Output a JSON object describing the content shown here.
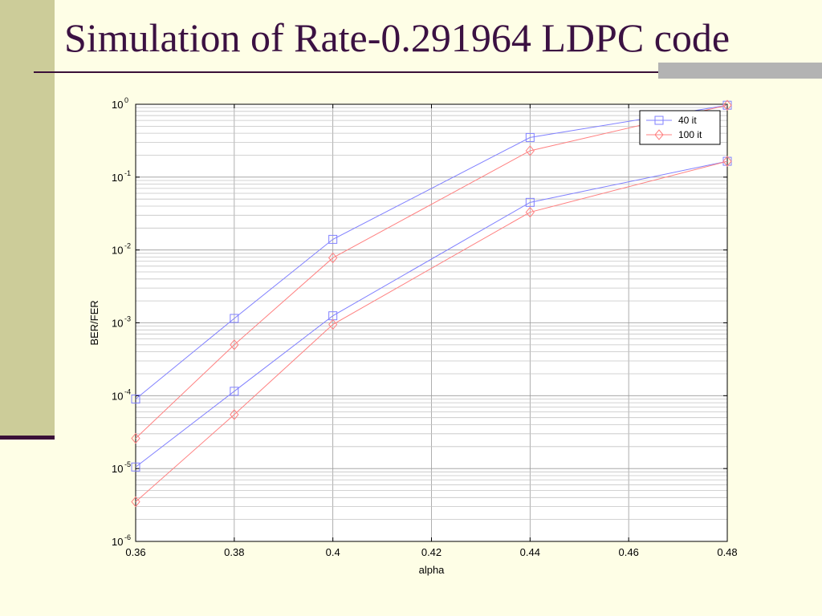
{
  "slide": {
    "title": "Simulation of Rate-0.291964 LDPC code"
  },
  "colors": {
    "background": "#fefee6",
    "side_band": "#cccc99",
    "title_text": "#3b1142",
    "rule": "#3a1038",
    "accent_bar": "#b3b3b3",
    "series_40": "#8080ff",
    "series_100": "#ff8080"
  },
  "chart_data": {
    "type": "line",
    "xlabel": "alpha",
    "ylabel": "BER/FER",
    "xscale": "linear",
    "yscale": "log",
    "xlim": [
      0.36,
      0.48
    ],
    "ylim": [
      1e-06,
      1
    ],
    "x_ticks": [
      "0.36",
      "0.38",
      "0.4",
      "0.42",
      "0.44",
      "0.46",
      "0.48"
    ],
    "y_ticks": [
      {
        "base": "10",
        "exp": "0"
      },
      {
        "base": "10",
        "exp": "-1"
      },
      {
        "base": "10",
        "exp": "-2"
      },
      {
        "base": "10",
        "exp": "-3"
      },
      {
        "base": "10",
        "exp": "-4"
      },
      {
        "base": "10",
        "exp": "-5"
      },
      {
        "base": "10",
        "exp": "-6"
      }
    ],
    "grid": true,
    "legend_position": "top-right",
    "legend": [
      {
        "label": "40 it",
        "marker": "square",
        "color": "#8080ff"
      },
      {
        "label": "100 it",
        "marker": "diamond",
        "color": "#ff8080"
      }
    ],
    "series": [
      {
        "legend_ref": "40 it",
        "marker": "square",
        "color": "#8080ff",
        "x": [
          0.36,
          0.38,
          0.4,
          0.44,
          0.48
        ],
        "y": [
          9e-05,
          0.00115,
          0.014,
          0.35,
          0.97
        ]
      },
      {
        "legend_ref": "100 it",
        "marker": "diamond",
        "color": "#ff8080",
        "x": [
          0.36,
          0.38,
          0.4,
          0.44,
          0.48
        ],
        "y": [
          2.6e-05,
          0.0005,
          0.0078,
          0.23,
          0.97
        ]
      },
      {
        "legend_ref": "40 it",
        "marker": "square",
        "color": "#8080ff",
        "x": [
          0.36,
          0.38,
          0.4,
          0.44,
          0.48
        ],
        "y": [
          1.05e-05,
          0.000115,
          0.00125,
          0.045,
          0.165
        ]
      },
      {
        "legend_ref": "100 it",
        "marker": "diamond",
        "color": "#ff8080",
        "x": [
          0.36,
          0.38,
          0.4,
          0.44,
          0.48
        ],
        "y": [
          3.5e-06,
          5.5e-05,
          0.00095,
          0.033,
          0.165
        ]
      }
    ]
  }
}
